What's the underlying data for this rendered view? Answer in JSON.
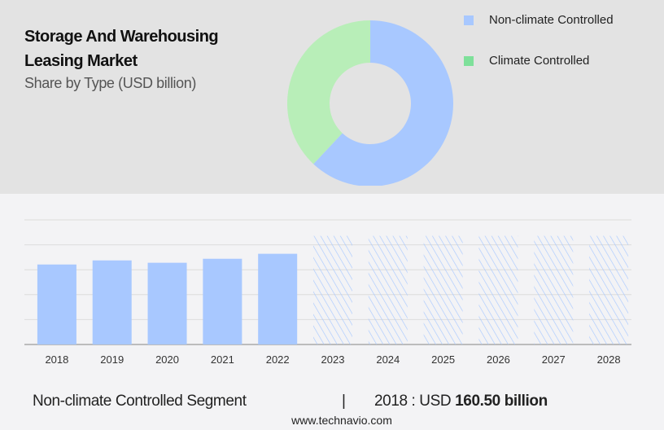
{
  "header": {
    "title": "Storage And Warehousing Leasing Market",
    "subtitle": "Share by Type (USD billion)"
  },
  "chart_data": [
    {
      "type": "pie",
      "style": "donut",
      "slices": [
        {
          "name": "Non-climate Controlled",
          "share": 62,
          "color": "#a8c8ff"
        },
        {
          "name": "Climate Controlled",
          "share": 38,
          "color": "#b8eeb8"
        }
      ],
      "legend": [
        {
          "label": "Non-climate Controlled",
          "color": "#a8c8ff"
        },
        {
          "label": "Climate Controlled",
          "color": "#7ee09a"
        }
      ],
      "legend_placement": "top-right"
    },
    {
      "type": "bar",
      "categories": [
        "2018",
        "2019",
        "2020",
        "2021",
        "2022",
        "2023",
        "2024",
        "2025",
        "2026",
        "2027",
        "2028"
      ],
      "values": [
        160.5,
        168.7,
        164,
        172,
        182,
        218,
        218,
        218,
        218,
        218,
        218
      ],
      "forecast": [
        false,
        false,
        false,
        false,
        false,
        true,
        true,
        true,
        true,
        true,
        true
      ],
      "ylim": [
        0,
        250
      ],
      "grid": true,
      "color": "#a8c8ff"
    }
  ],
  "footer": {
    "segment": "Non-climate Controlled Segment",
    "separator": "|",
    "year_label": "2018 : USD ",
    "value": "160.50 billion",
    "website": "www.technavio.com"
  }
}
